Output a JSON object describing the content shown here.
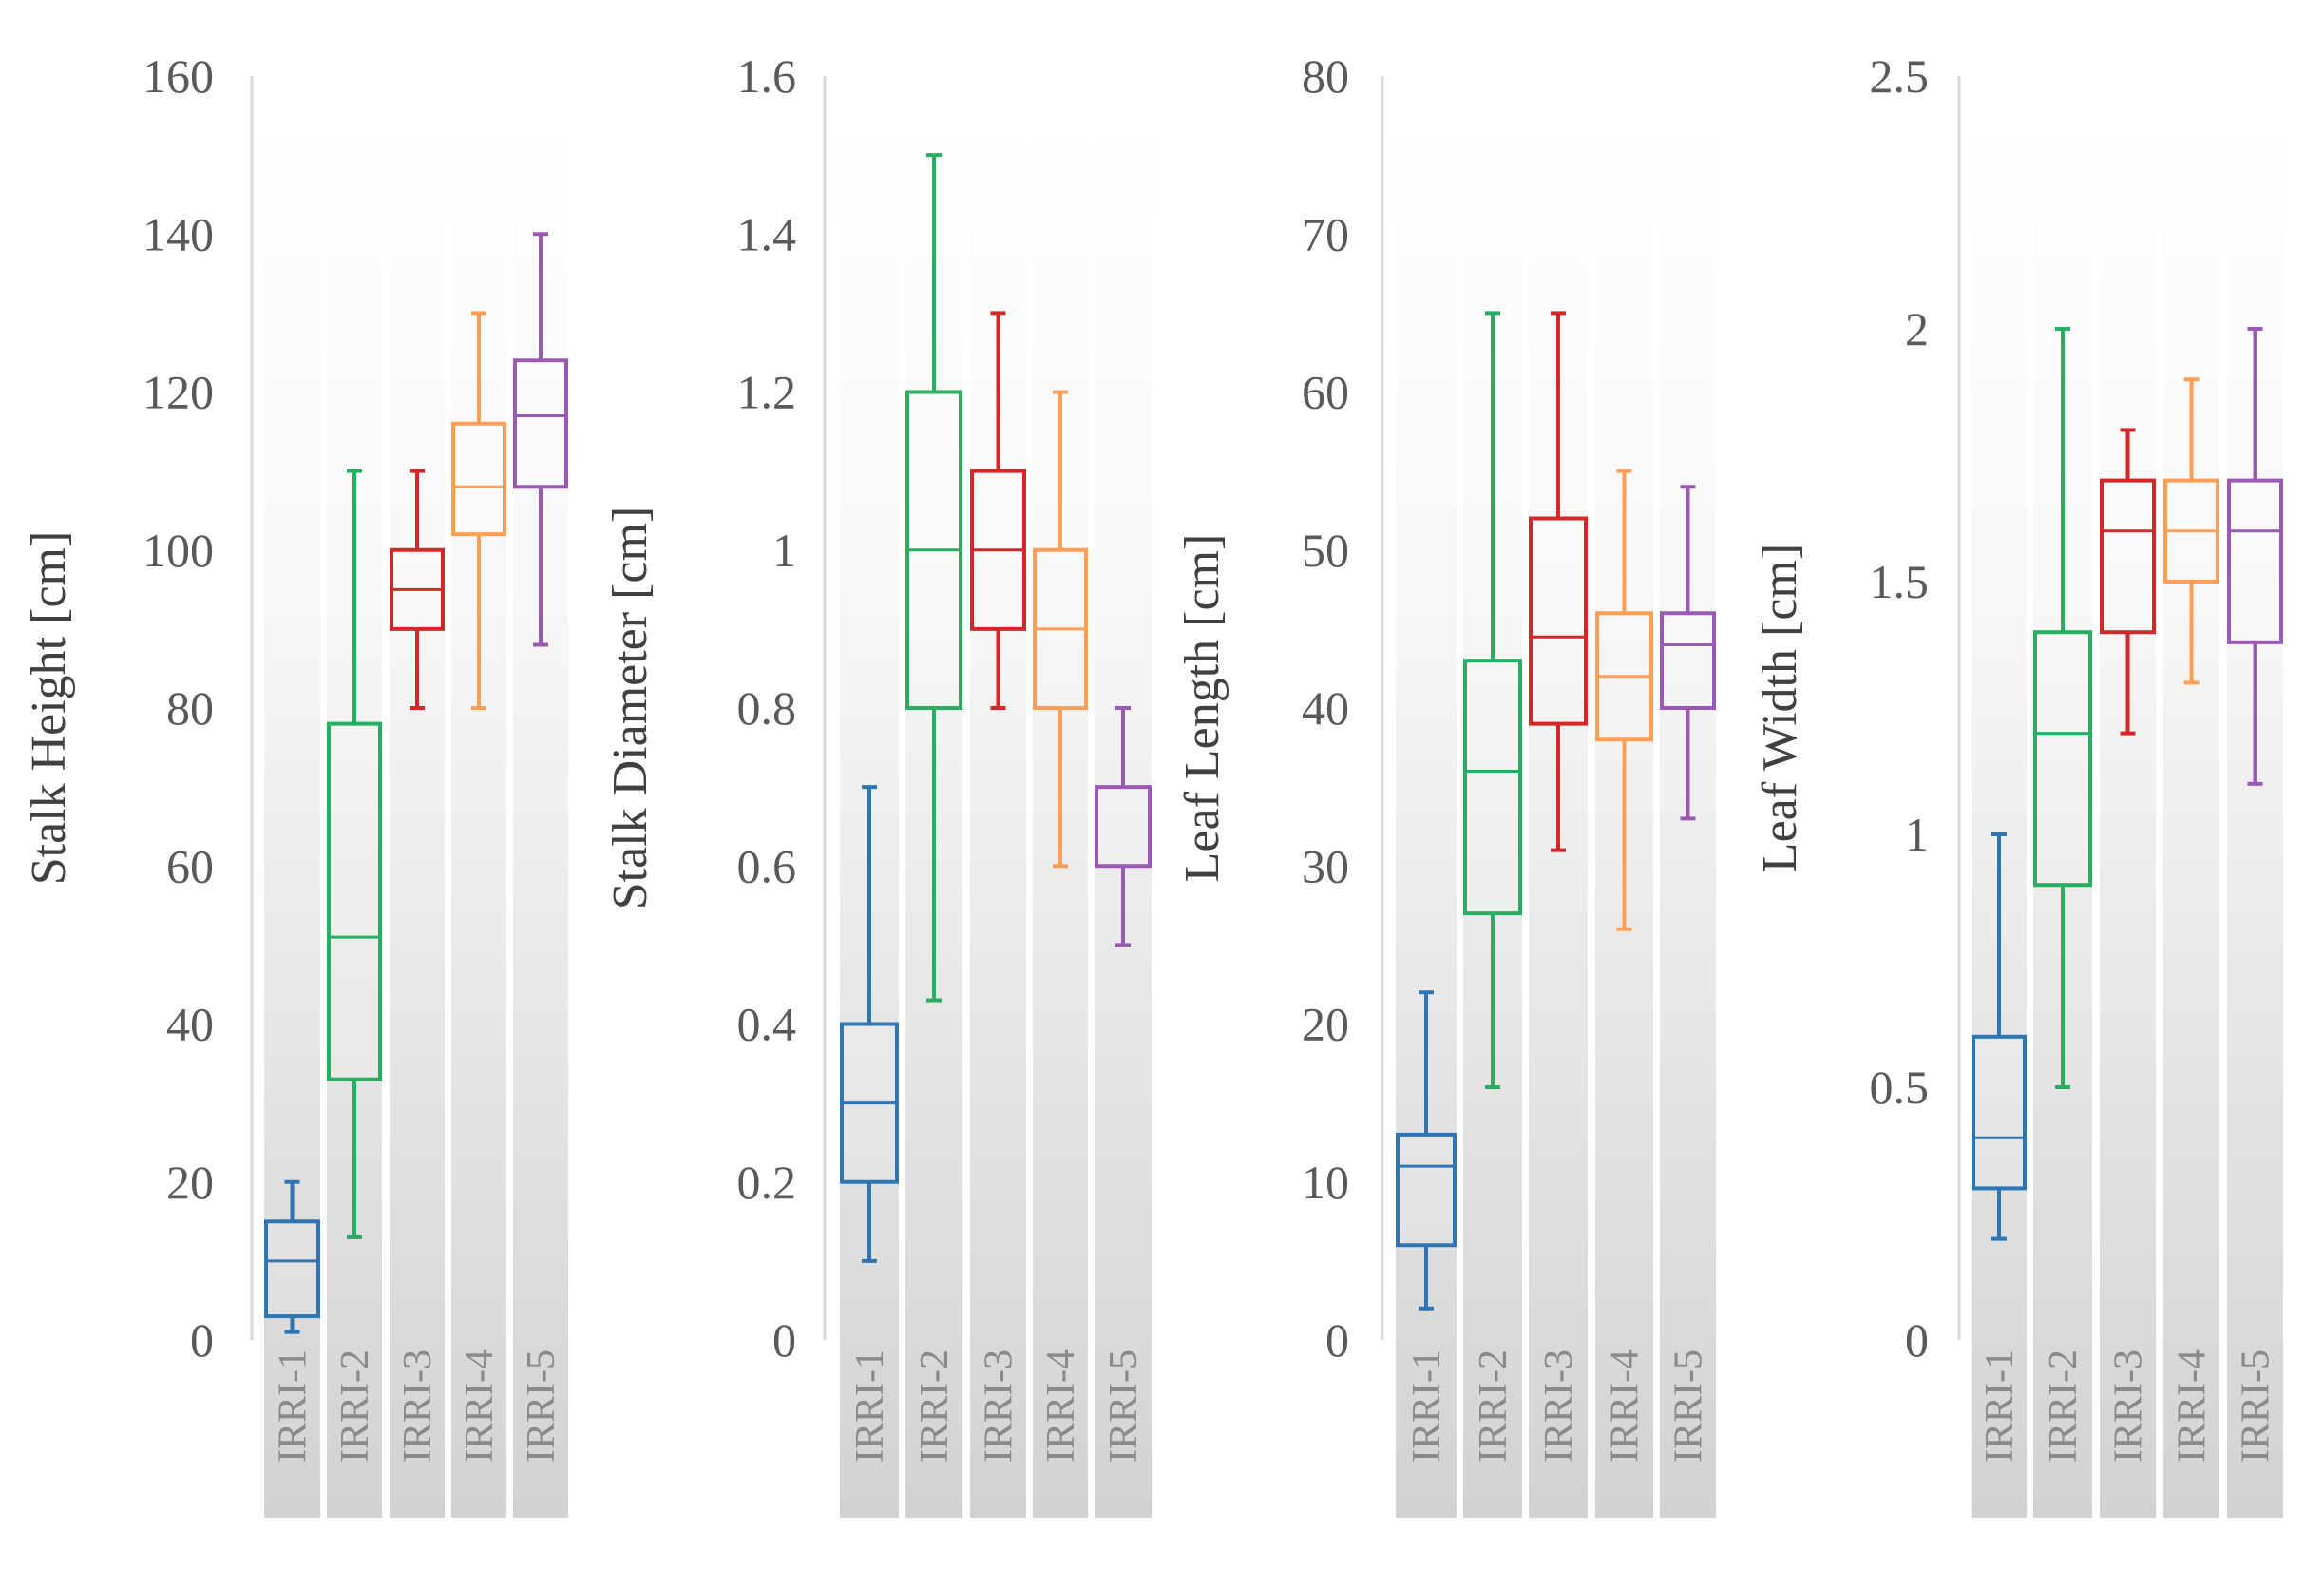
{
  "chart_data": [
    {
      "type": "boxplot",
      "ylabel": "Stalk Height  [cm]",
      "ylim": [
        0,
        160
      ],
      "yticks": [
        0,
        20,
        40,
        60,
        80,
        100,
        120,
        140,
        160
      ],
      "categories": [
        "IRRI-1",
        "IRRI-2",
        "IRRI-3",
        "IRRI-4",
        "IRRI-5"
      ],
      "series": [
        {
          "name": "IRRI-1",
          "color": "#2e75b6",
          "min": 1,
          "q1": 3,
          "median": 10,
          "q3": 15,
          "max": 20
        },
        {
          "name": "IRRI-2",
          "color": "#27ae60",
          "min": 13,
          "q1": 33,
          "median": 51,
          "q3": 78,
          "max": 110
        },
        {
          "name": "IRRI-3",
          "color": "#d62728",
          "min": 80,
          "q1": 90,
          "median": 95,
          "q3": 100,
          "max": 110
        },
        {
          "name": "IRRI-4",
          "color": "#ff9f55",
          "min": 80,
          "q1": 102,
          "median": 108,
          "q3": 116,
          "max": 130
        },
        {
          "name": "IRRI-5",
          "color": "#9b59b6",
          "min": 88,
          "q1": 108,
          "median": 117,
          "q3": 124,
          "max": 140
        }
      ]
    },
    {
      "type": "boxplot",
      "ylabel": "Stalk Diameter [cm]",
      "ylim": [
        0,
        1.6
      ],
      "yticks": [
        "0",
        "0.2",
        "0.4",
        "0.6",
        "0.8",
        "1",
        "1.2",
        "1.4",
        "1.6"
      ],
      "categories": [
        "IRRI-1",
        "IRRI-2",
        "IRRI-3",
        "IRRI-4",
        "IRRI-5"
      ],
      "series": [
        {
          "name": "IRRI-1",
          "color": "#2e75b6",
          "min": 0.1,
          "q1": 0.2,
          "median": 0.3,
          "q3": 0.4,
          "max": 0.7
        },
        {
          "name": "IRRI-2",
          "color": "#27ae60",
          "min": 0.43,
          "q1": 0.8,
          "median": 1.0,
          "q3": 1.2,
          "max": 1.5
        },
        {
          "name": "IRRI-3",
          "color": "#d62728",
          "min": 0.8,
          "q1": 0.9,
          "median": 1.0,
          "q3": 1.1,
          "max": 1.3
        },
        {
          "name": "IRRI-4",
          "color": "#ff9f55",
          "min": 0.6,
          "q1": 0.8,
          "median": 0.9,
          "q3": 1.0,
          "max": 1.2
        },
        {
          "name": "IRRI-5",
          "color": "#9b59b6",
          "min": 0.5,
          "q1": 0.6,
          "median": 0.6,
          "q3": 0.7,
          "max": 0.8
        }
      ]
    },
    {
      "type": "boxplot",
      "ylabel": "Leaf Length  [cm]",
      "ylim": [
        0,
        80
      ],
      "yticks": [
        0,
        10,
        20,
        30,
        40,
        50,
        60,
        70,
        80
      ],
      "categories": [
        "IRRI-1",
        "IRRI-2",
        "IRRI-3",
        "IRRI-4",
        "IRRI-5"
      ],
      "series": [
        {
          "name": "IRRI-1",
          "color": "#2e75b6",
          "min": 2,
          "q1": 6,
          "median": 11,
          "q3": 13,
          "max": 22
        },
        {
          "name": "IRRI-2",
          "color": "#27ae60",
          "min": 16,
          "q1": 27,
          "median": 36,
          "q3": 43,
          "max": 65
        },
        {
          "name": "IRRI-3",
          "color": "#d62728",
          "min": 31,
          "q1": 39,
          "median": 44.5,
          "q3": 52,
          "max": 65
        },
        {
          "name": "IRRI-4",
          "color": "#ff9f55",
          "min": 26,
          "q1": 38,
          "median": 42,
          "q3": 46,
          "max": 55
        },
        {
          "name": "IRRI-5",
          "color": "#9b59b6",
          "min": 33,
          "q1": 40,
          "median": 44,
          "q3": 46,
          "max": 54
        }
      ]
    },
    {
      "type": "boxplot",
      "ylabel": "Leaf Width  [cm]",
      "ylim": [
        0,
        2.5
      ],
      "yticks": [
        "0",
        "0.5",
        "1",
        "1.5",
        "2",
        "2.5"
      ],
      "categories": [
        "IRRI-1",
        "IRRI-2",
        "IRRI-3",
        "IRRI-4",
        "IRRI-5"
      ],
      "series": [
        {
          "name": "IRRI-1",
          "color": "#2e75b6",
          "min": 0.2,
          "q1": 0.3,
          "median": 0.4,
          "q3": 0.6,
          "max": 1.0
        },
        {
          "name": "IRRI-2",
          "color": "#27ae60",
          "min": 0.5,
          "q1": 0.9,
          "median": 1.2,
          "q3": 1.4,
          "max": 2.0
        },
        {
          "name": "IRRI-3",
          "color": "#d62728",
          "min": 1.2,
          "q1": 1.4,
          "median": 1.6,
          "q3": 1.7,
          "max": 1.8
        },
        {
          "name": "IRRI-4",
          "color": "#ff9f55",
          "min": 1.3,
          "q1": 1.5,
          "median": 1.6,
          "q3": 1.7,
          "max": 1.9
        },
        {
          "name": "IRRI-5",
          "color": "#9b59b6",
          "min": 1.1,
          "q1": 1.38,
          "median": 1.6,
          "q3": 1.7,
          "max": 2.0
        }
      ]
    }
  ]
}
